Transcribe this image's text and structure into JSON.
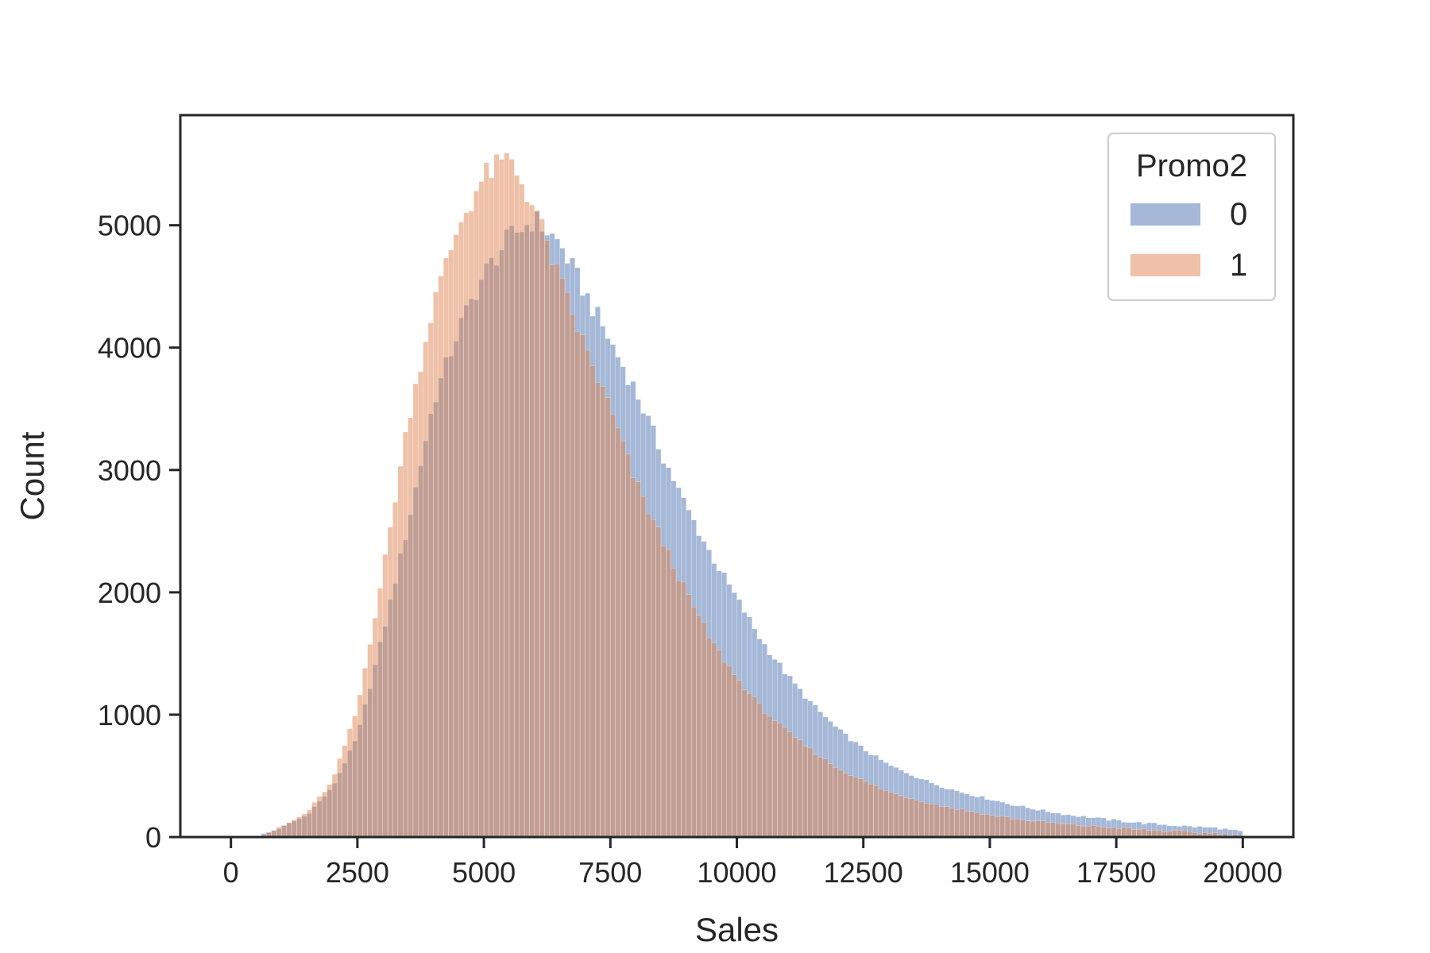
{
  "chart_data": {
    "type": "histogram",
    "title": "",
    "xlabel": "Sales",
    "ylabel": "Count",
    "xlim": [
      -1000,
      21000
    ],
    "ylim": [
      0,
      5900
    ],
    "xticks": [
      0,
      2500,
      5000,
      7500,
      10000,
      12500,
      15000,
      17500,
      20000
    ],
    "yticks": [
      0,
      1000,
      2000,
      3000,
      4000,
      5000
    ],
    "grid": false,
    "bin_start": 0,
    "bin_width": 100,
    "legend": {
      "title": "Promo2",
      "placement": "top-right",
      "entries": [
        "0",
        "1"
      ]
    },
    "series": [
      {
        "name": "0",
        "color": "#4c72b0",
        "shape": "skewed-right",
        "mode_x": 6000,
        "peak_count": 5050,
        "support": [
          500,
          20000
        ],
        "anchors": [
          [
            500,
            0
          ],
          [
            1000,
            80
          ],
          [
            1500,
            180
          ],
          [
            2000,
            400
          ],
          [
            2500,
            820
          ],
          [
            3000,
            1650
          ],
          [
            3500,
            2550
          ],
          [
            4000,
            3550
          ],
          [
            4500,
            4150
          ],
          [
            5000,
            4600
          ],
          [
            5500,
            4900
          ],
          [
            6000,
            5050
          ],
          [
            6500,
            4850
          ],
          [
            7000,
            4450
          ],
          [
            7500,
            4050
          ],
          [
            8000,
            3650
          ],
          [
            8500,
            3150
          ],
          [
            9000,
            2700
          ],
          [
            9500,
            2300
          ],
          [
            10000,
            1950
          ],
          [
            10500,
            1600
          ],
          [
            11000,
            1320
          ],
          [
            11500,
            1080
          ],
          [
            12000,
            880
          ],
          [
            12500,
            720
          ],
          [
            13000,
            590
          ],
          [
            13500,
            500
          ],
          [
            14000,
            420
          ],
          [
            14500,
            360
          ],
          [
            15000,
            310
          ],
          [
            15500,
            260
          ],
          [
            16000,
            220
          ],
          [
            16500,
            185
          ],
          [
            17000,
            160
          ],
          [
            17500,
            135
          ],
          [
            18000,
            115
          ],
          [
            18500,
            100
          ],
          [
            19000,
            85
          ],
          [
            19500,
            75
          ],
          [
            20000,
            40
          ]
        ]
      },
      {
        "name": "1",
        "color": "#dd8452",
        "shape": "skewed-right",
        "mode_x": 5300,
        "peak_count": 5550,
        "support": [
          500,
          20000
        ],
        "anchors": [
          [
            500,
            0
          ],
          [
            1000,
            80
          ],
          [
            1500,
            200
          ],
          [
            2000,
            450
          ],
          [
            2500,
            1050
          ],
          [
            3000,
            2150
          ],
          [
            3500,
            3400
          ],
          [
            4000,
            4350
          ],
          [
            4500,
            5000
          ],
          [
            5000,
            5400
          ],
          [
            5500,
            5550
          ],
          [
            6000,
            5150
          ],
          [
            6500,
            4550
          ],
          [
            7000,
            4000
          ],
          [
            7500,
            3500
          ],
          [
            8000,
            2900
          ],
          [
            8500,
            2450
          ],
          [
            9000,
            2000
          ],
          [
            9500,
            1600
          ],
          [
            10000,
            1300
          ],
          [
            10500,
            1050
          ],
          [
            11000,
            860
          ],
          [
            11500,
            700
          ],
          [
            12000,
            560
          ],
          [
            12500,
            460
          ],
          [
            13000,
            370
          ],
          [
            13500,
            310
          ],
          [
            14000,
            260
          ],
          [
            14500,
            220
          ],
          [
            15000,
            180
          ],
          [
            15500,
            150
          ],
          [
            16000,
            125
          ],
          [
            16500,
            105
          ],
          [
            17000,
            90
          ],
          [
            17500,
            75
          ],
          [
            18000,
            60
          ],
          [
            18500,
            50
          ],
          [
            19000,
            40
          ],
          [
            19500,
            30
          ],
          [
            20000,
            10
          ]
        ]
      }
    ]
  }
}
